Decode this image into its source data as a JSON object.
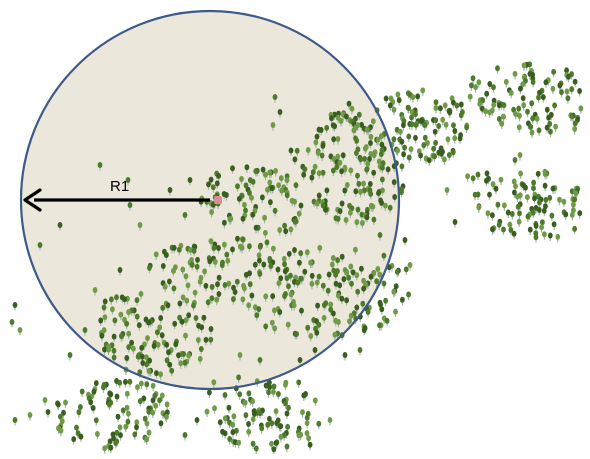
{
  "diagram": {
    "radius_label": "R1",
    "description_colors": {
      "circle_fill": "#ebe7da",
      "circle_stroke": "#3d5a88",
      "tree_canopy": "#4e7a2c",
      "tree_canopy_dark": "#3a5e20",
      "tree_canopy_light": "#6f9a47",
      "tree_trunk": "#a7b4b8",
      "center_marker": "#d98f96",
      "arrow": "#000000"
    },
    "elements": {
      "circle": "search-radius-circle",
      "center": "center-point-marker",
      "arrow": "radius-arrow",
      "trees": "tree-stands"
    }
  }
}
